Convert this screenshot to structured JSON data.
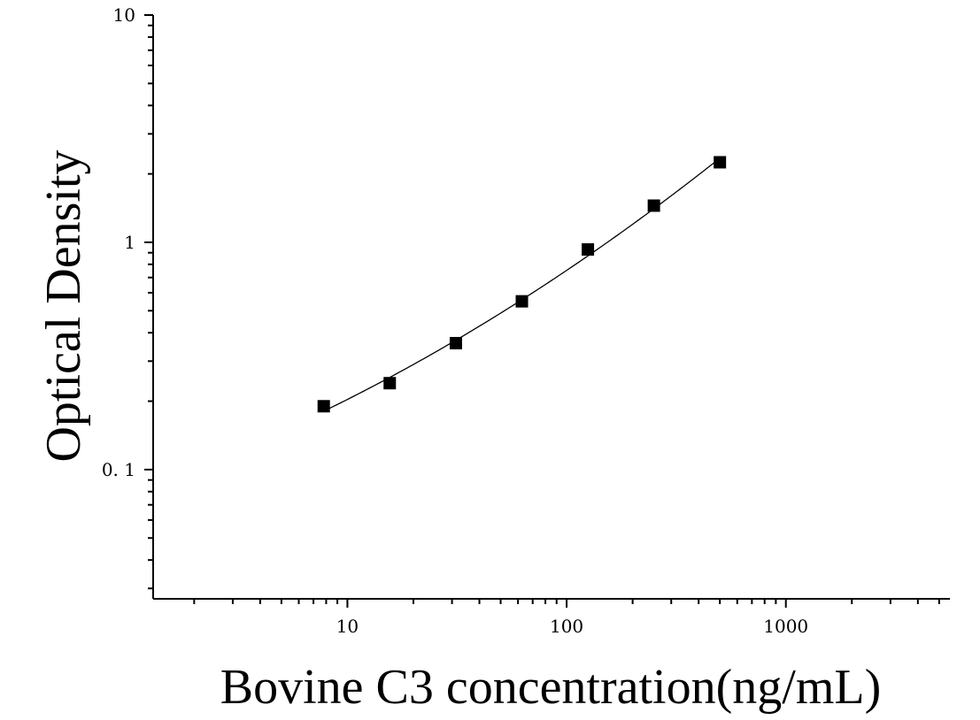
{
  "chart_data": {
    "type": "scatter",
    "title": "",
    "xlabel": "Bovine C3 concentration(ng/mL)",
    "ylabel": "Optical Density",
    "x_scale": "log",
    "y_scale": "log",
    "xlim": [
      1.3,
      5600
    ],
    "ylim": [
      0.027,
      10
    ],
    "x_ticks": [
      {
        "value": 10,
        "label": "10"
      },
      {
        "value": 100,
        "label": "100"
      },
      {
        "value": 1000,
        "label": "1000"
      }
    ],
    "y_ticks": [
      {
        "value": 0.1,
        "label": "0. 1"
      },
      {
        "value": 1,
        "label": "1"
      },
      {
        "value": 10,
        "label": "10"
      }
    ],
    "grid": false,
    "legend": "none",
    "series": [
      {
        "marker": "square",
        "color": "#000000",
        "points": [
          {
            "x": 7.8,
            "y": 0.19
          },
          {
            "x": 15.6,
            "y": 0.24
          },
          {
            "x": 31.25,
            "y": 0.36
          },
          {
            "x": 62.5,
            "y": 0.55
          },
          {
            "x": 125,
            "y": 0.93
          },
          {
            "x": 250,
            "y": 1.45
          },
          {
            "x": 500,
            "y": 2.25
          }
        ]
      }
    ],
    "fit_curve": {
      "type": "smooth",
      "color": "#000000",
      "x_range": [
        7.8,
        500
      ]
    }
  }
}
